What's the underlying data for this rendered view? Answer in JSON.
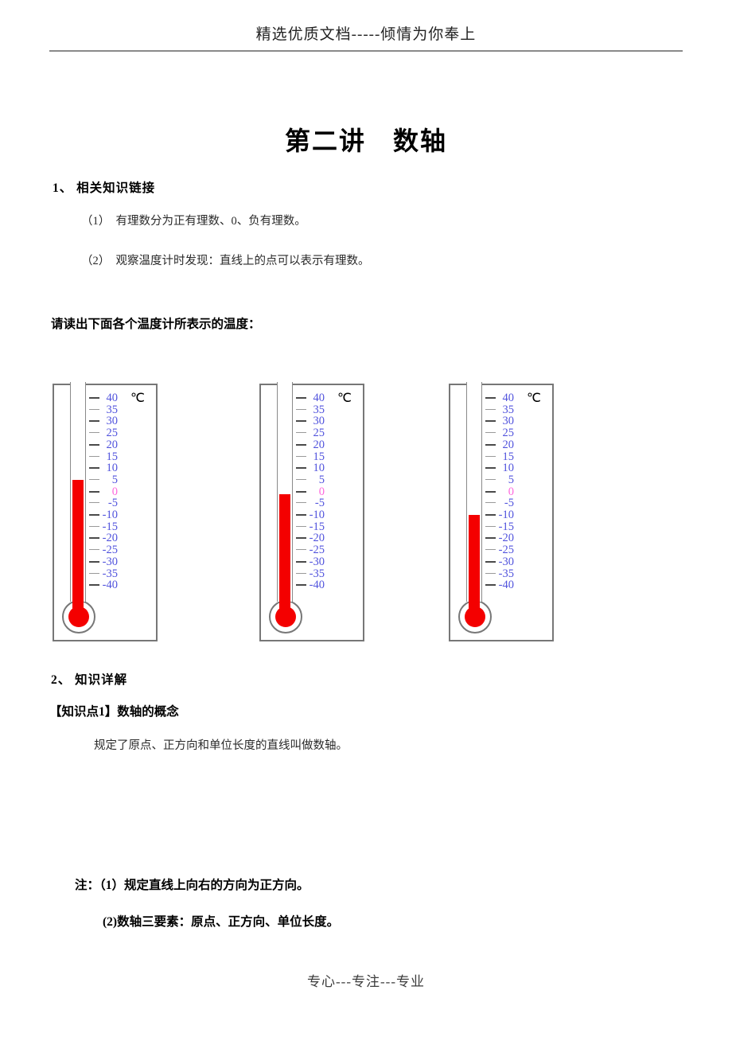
{
  "header": {
    "text": "精选优质文档-----倾情为你奉上"
  },
  "title": "第二讲　数轴",
  "sections": {
    "s1_heading": "1、 相关知识链接",
    "s1_item1": "（1）　有理数分为正有理数、0、负有理数。",
    "s1_item2": "（2）　观察温度计时发现：直线上的点可以表示有理数。",
    "prompt": "请读出下面各个温度计所表示的温度：",
    "s2_heading": "2、  知识详解",
    "kp1_heading": "【知识点1】数轴的概念",
    "kp1_body": "规定了原点、正方向和单位长度的直线叫做数轴。",
    "note_line1": "注：（1）规定直线上向右的方向为正方向。",
    "note_line2": "(2)数轴三要素：原点、正方向、单位长度。"
  },
  "footer": {
    "text": "专心---专注---专业"
  },
  "chart_data": {
    "type": "table",
    "title": "温度计读数 (thermometer readings)",
    "unit": "℃",
    "scale_max": 40,
    "scale_min": -40,
    "scale_step": 5,
    "scale_labels": [
      "40",
      "35",
      "30",
      "25",
      "20",
      "15",
      "10",
      "5",
      "0",
      "-5",
      "-10",
      "-15",
      "-20",
      "-25",
      "-30",
      "-35",
      "-40"
    ],
    "readings_celsius": [
      5,
      -1,
      -10
    ],
    "colors": {
      "mercury": "#f40000",
      "scale_number": "#5153dd",
      "zero_number": "#ff66dd",
      "unit_text": "#000000",
      "frame": "#777777"
    }
  }
}
